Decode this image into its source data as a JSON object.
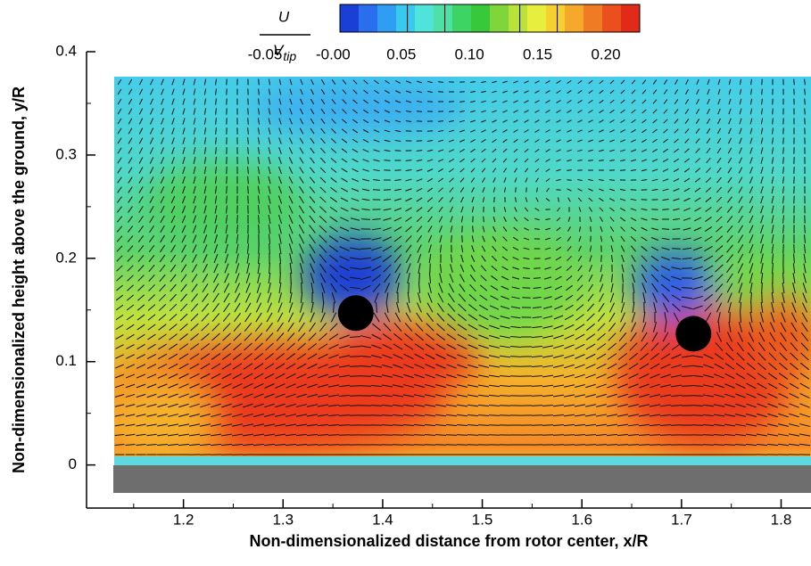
{
  "chart_data": {
    "type": "contour",
    "x_label": "Non-dimensionalized distance from rotor center, x/R",
    "y_label": "Non-dimensionalized height above the ground, y/R",
    "xlim": [
      1.1,
      1.83
    ],
    "ylim": [
      -0.04,
      0.4
    ],
    "xticks": [
      1.2,
      1.3,
      1.4,
      1.5,
      1.6,
      1.7,
      1.8
    ],
    "yticks": [
      0,
      0.1,
      0.2,
      0.3,
      0.4
    ],
    "colorbar_label": {
      "numerator": "U",
      "denominator": "V",
      "subscript": "tip"
    },
    "colorbar_ticks": [
      {
        "value": -0.05,
        "label": "-0.05"
      },
      {
        "value": 0,
        "label": "-0.00"
      },
      {
        "value": 0.05,
        "label": "0.05"
      },
      {
        "value": 0.1,
        "label": "0.10"
      },
      {
        "value": 0.15,
        "label": "0.15"
      },
      {
        "value": 0.2,
        "label": "0.20"
      }
    ],
    "colormap": [
      "#1a3fd6",
      "#2a6ef0",
      "#2f9ef2",
      "#37c9ee",
      "#4fe3d9",
      "#4fe0a8",
      "#3ed464",
      "#38c93a",
      "#7fd63a",
      "#b9e23c",
      "#e8ee3e",
      "#f5d030",
      "#f5a82a",
      "#f07b25",
      "#ec4f1e",
      "#e22a18"
    ],
    "vortices": {
      "x": [
        1.373,
        1.712
      ],
      "y": [
        0.147,
        0.127
      ]
    }
  }
}
